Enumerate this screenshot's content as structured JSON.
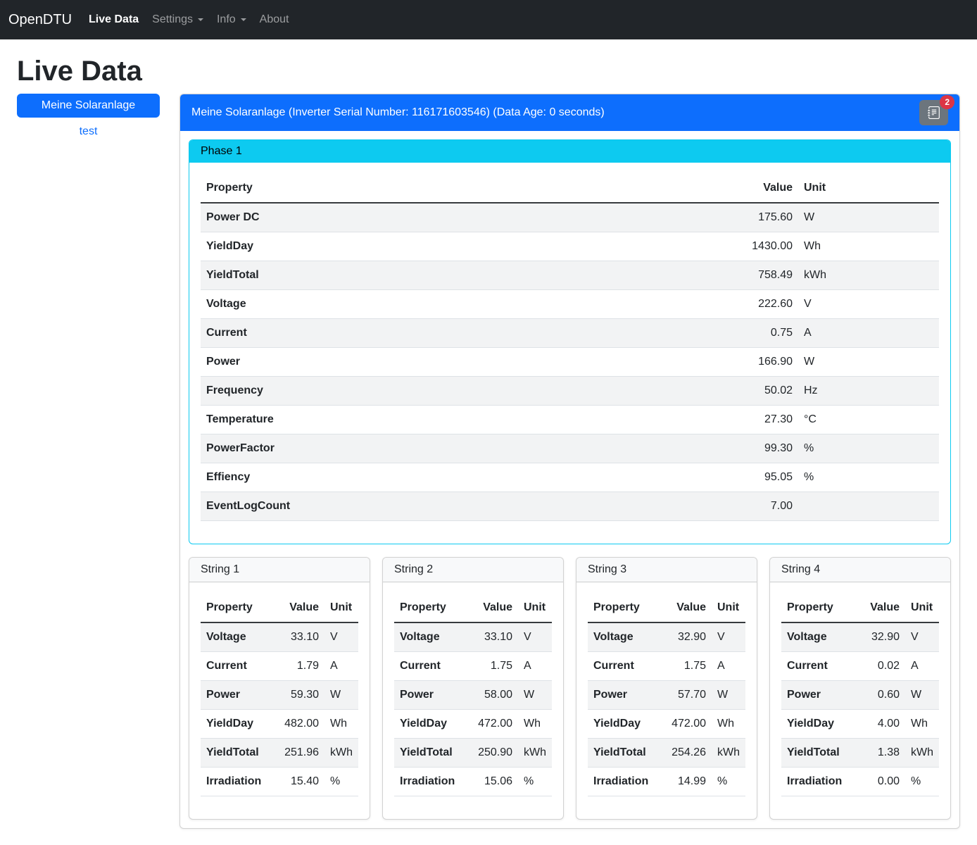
{
  "theme": {
    "primary": "#0d6efd",
    "info": "#0dcaf0",
    "secondary": "#6c757d",
    "danger": "#dc3545",
    "dark": "#212529"
  },
  "navbar": {
    "brand": "OpenDTU",
    "items": [
      {
        "label": "Live Data"
      },
      {
        "label": "Settings"
      },
      {
        "label": "Info"
      },
      {
        "label": "About"
      }
    ]
  },
  "page": {
    "title": "Live Data"
  },
  "sidebar": {
    "active_inverter": "Meine Solaranlage",
    "secondary_inverter": "test"
  },
  "inverter": {
    "header": "Meine Solaranlage (Inverter Serial Number: 116171603546) (Data Age: 0 seconds)",
    "eventlog_count": "2",
    "eventlog_icon": "journal-text-icon"
  },
  "columns": {
    "property": "Property",
    "value": "Value",
    "unit": "Unit"
  },
  "phase": {
    "title": "Phase 1",
    "rows": [
      {
        "property": "Power DC",
        "value": "175.60",
        "unit": "W"
      },
      {
        "property": "YieldDay",
        "value": "1430.00",
        "unit": "Wh"
      },
      {
        "property": "YieldTotal",
        "value": "758.49",
        "unit": "kWh"
      },
      {
        "property": "Voltage",
        "value": "222.60",
        "unit": "V"
      },
      {
        "property": "Current",
        "value": "0.75",
        "unit": "A"
      },
      {
        "property": "Power",
        "value": "166.90",
        "unit": "W"
      },
      {
        "property": "Frequency",
        "value": "50.02",
        "unit": "Hz"
      },
      {
        "property": "Temperature",
        "value": "27.30",
        "unit": "°C"
      },
      {
        "property": "PowerFactor",
        "value": "99.30",
        "unit": "%"
      },
      {
        "property": "Effiency",
        "value": "95.05",
        "unit": "%"
      },
      {
        "property": "EventLogCount",
        "value": "7.00",
        "unit": ""
      }
    ]
  },
  "strings": [
    {
      "title": "String 1",
      "rows": [
        {
          "property": "Voltage",
          "value": "33.10",
          "unit": "V"
        },
        {
          "property": "Current",
          "value": "1.79",
          "unit": "A"
        },
        {
          "property": "Power",
          "value": "59.30",
          "unit": "W"
        },
        {
          "property": "YieldDay",
          "value": "482.00",
          "unit": "Wh"
        },
        {
          "property": "YieldTotal",
          "value": "251.96",
          "unit": "kWh"
        },
        {
          "property": "Irradiation",
          "value": "15.40",
          "unit": "%"
        }
      ]
    },
    {
      "title": "String 2",
      "rows": [
        {
          "property": "Voltage",
          "value": "33.10",
          "unit": "V"
        },
        {
          "property": "Current",
          "value": "1.75",
          "unit": "A"
        },
        {
          "property": "Power",
          "value": "58.00",
          "unit": "W"
        },
        {
          "property": "YieldDay",
          "value": "472.00",
          "unit": "Wh"
        },
        {
          "property": "YieldTotal",
          "value": "250.90",
          "unit": "kWh"
        },
        {
          "property": "Irradiation",
          "value": "15.06",
          "unit": "%"
        }
      ]
    },
    {
      "title": "String 3",
      "rows": [
        {
          "property": "Voltage",
          "value": "32.90",
          "unit": "V"
        },
        {
          "property": "Current",
          "value": "1.75",
          "unit": "A"
        },
        {
          "property": "Power",
          "value": "57.70",
          "unit": "W"
        },
        {
          "property": "YieldDay",
          "value": "472.00",
          "unit": "Wh"
        },
        {
          "property": "YieldTotal",
          "value": "254.26",
          "unit": "kWh"
        },
        {
          "property": "Irradiation",
          "value": "14.99",
          "unit": "%"
        }
      ]
    },
    {
      "title": "String 4",
      "rows": [
        {
          "property": "Voltage",
          "value": "32.90",
          "unit": "V"
        },
        {
          "property": "Current",
          "value": "0.02",
          "unit": "A"
        },
        {
          "property": "Power",
          "value": "0.60",
          "unit": "W"
        },
        {
          "property": "YieldDay",
          "value": "4.00",
          "unit": "Wh"
        },
        {
          "property": "YieldTotal",
          "value": "1.38",
          "unit": "kWh"
        },
        {
          "property": "Irradiation",
          "value": "0.00",
          "unit": "%"
        }
      ]
    }
  ]
}
